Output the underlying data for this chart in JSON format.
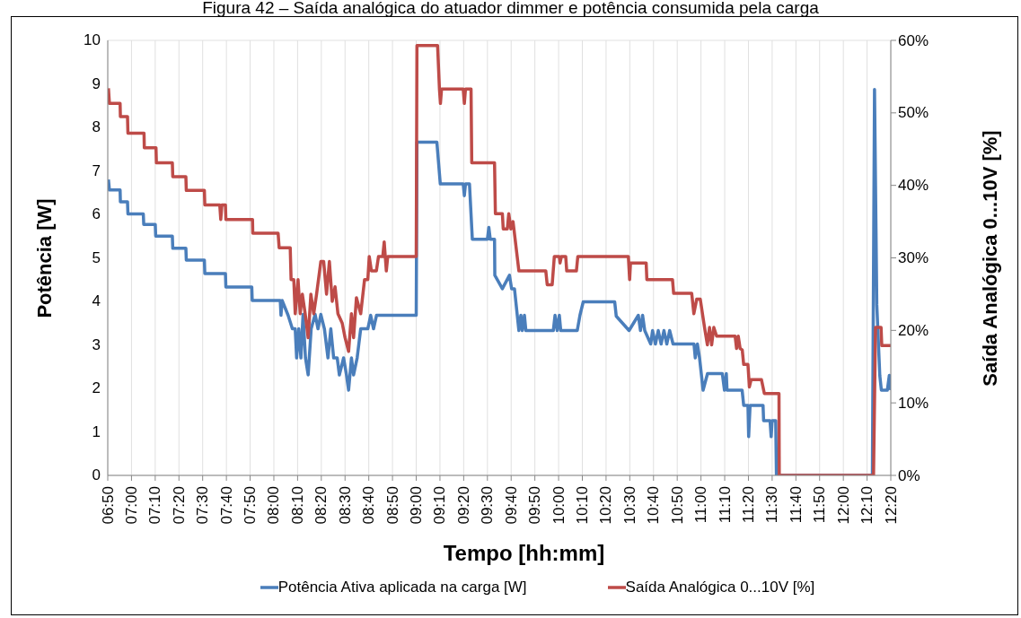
{
  "chart_data": {
    "type": "line",
    "title": "Figura 42 – Saída analógica do atuador dimmer e potência consumida pela carga",
    "xlabel": "Tempo [hh:mm]",
    "ylabel": "Potência [W]",
    "y2label": "Saída Analógica 0...10V [%]",
    "xlim": [
      6.8333,
      12.3333
    ],
    "xticks": [
      {
        "value": 6.8333,
        "label": "06:50"
      },
      {
        "value": 7,
        "label": "07:00"
      },
      {
        "value": 7.1667,
        "label": "07:10"
      },
      {
        "value": 7.3333,
        "label": "07:20"
      },
      {
        "value": 7.5,
        "label": "07:30"
      },
      {
        "value": 7.6667,
        "label": "07:40"
      },
      {
        "value": 7.8333,
        "label": "07:50"
      },
      {
        "value": 8,
        "label": "08:00"
      },
      {
        "value": 8.1667,
        "label": "08:10"
      },
      {
        "value": 8.3333,
        "label": "08:20"
      },
      {
        "value": 8.5,
        "label": "08:30"
      },
      {
        "value": 8.6667,
        "label": "08:40"
      },
      {
        "value": 8.8333,
        "label": "08:50"
      },
      {
        "value": 9,
        "label": "09:00"
      },
      {
        "value": 9.1667,
        "label": "09:10"
      },
      {
        "value": 9.3333,
        "label": "09:20"
      },
      {
        "value": 9.5,
        "label": "09:30"
      },
      {
        "value": 9.6667,
        "label": "09:40"
      },
      {
        "value": 9.8333,
        "label": "09:50"
      },
      {
        "value": 10,
        "label": "10:00"
      },
      {
        "value": 10.1667,
        "label": "10:10"
      },
      {
        "value": 10.3333,
        "label": "10:20"
      },
      {
        "value": 10.5,
        "label": "10:30"
      },
      {
        "value": 10.6667,
        "label": "10:40"
      },
      {
        "value": 10.8333,
        "label": "10:50"
      },
      {
        "value": 11,
        "label": "11:00"
      },
      {
        "value": 11.1667,
        "label": "11:10"
      },
      {
        "value": 11.3333,
        "label": "11:20"
      },
      {
        "value": 11.5,
        "label": "11:30"
      },
      {
        "value": 11.6667,
        "label": "11:40"
      },
      {
        "value": 11.8333,
        "label": "11:50"
      },
      {
        "value": 12,
        "label": "12:00"
      },
      {
        "value": 12.1667,
        "label": "12:10"
      },
      {
        "value": 12.3333,
        "label": "12:20"
      }
    ],
    "ylim": [
      0,
      10
    ],
    "yticks": [
      0,
      1,
      2,
      3,
      4,
      5,
      6,
      7,
      8,
      9,
      10
    ],
    "y2lim": [
      0,
      60
    ],
    "y2ticks": [
      {
        "value": 0,
        "label": "0%"
      },
      {
        "value": 10,
        "label": "10%"
      },
      {
        "value": 20,
        "label": "20%"
      },
      {
        "value": 30,
        "label": "30%"
      },
      {
        "value": 40,
        "label": "40%"
      },
      {
        "value": 50,
        "label": "50%"
      },
      {
        "value": 60,
        "label": "60%"
      }
    ],
    "grid": true,
    "legend": "bottom",
    "marker": "none",
    "line_style": "solid",
    "series": [
      {
        "name": "Potência Ativa aplicada na carga [W]",
        "color": "#4a7ebb",
        "x": [
          6.838,
          6.845,
          6.92,
          6.922,
          6.972,
          6.975,
          7.083,
          7.086,
          7.167,
          7.17,
          7.287,
          7.29,
          7.382,
          7.385,
          7.512,
          7.515,
          7.66,
          7.663,
          7.845,
          7.848,
          8.045,
          8.05,
          8.058,
          8.1,
          8.13,
          8.15,
          8.16,
          8.175,
          8.19,
          8.205,
          8.222,
          8.241,
          8.262,
          8.29,
          8.31,
          8.33,
          8.355,
          8.38,
          8.4,
          8.42,
          8.445,
          8.46,
          8.49,
          8.51,
          8.525,
          8.545,
          8.56,
          8.585,
          8.61,
          8.66,
          8.68,
          8.7,
          8.721,
          9.0,
          9.005,
          9.145,
          9.169,
          9.33,
          9.338,
          9.346,
          9.374,
          9.394,
          9.5,
          9.51,
          9.52,
          9.55,
          9.552,
          9.605,
          9.655,
          9.67,
          9.69,
          9.721,
          9.735,
          9.745,
          9.76,
          9.77,
          9.963,
          9.975,
          9.99,
          10.005,
          10.015,
          10.131,
          10.15,
          10.173,
          10.394,
          10.405,
          10.495,
          10.56,
          10.575,
          10.59,
          10.605,
          10.647,
          10.66,
          10.68,
          10.7,
          10.72,
          10.74,
          10.76,
          10.78,
          10.804,
          10.951,
          10.96,
          10.975,
          10.99,
          11.015,
          11.046,
          11.15,
          11.165,
          11.178,
          11.183,
          11.289,
          11.3,
          11.33,
          11.335,
          11.345,
          11.436,
          11.44,
          11.485,
          11.493,
          11.5,
          11.525,
          11.53,
          12.204,
          12.219,
          12.235,
          12.256,
          12.267,
          12.309,
          12.323,
          12.333
        ],
        "values": [
          6.8,
          6.56,
          6.56,
          6.29,
          6.29,
          6.01,
          6.01,
          5.77,
          5.77,
          5.5,
          5.5,
          5.22,
          5.22,
          4.95,
          4.95,
          4.64,
          4.64,
          4.33,
          4.33,
          4.02,
          4.02,
          3.68,
          4.02,
          3.68,
          3.37,
          3.37,
          2.7,
          3.37,
          2.7,
          3.7,
          2.7,
          2.31,
          3.37,
          3.7,
          3.37,
          3.7,
          3.37,
          2.7,
          3.37,
          2.7,
          2.7,
          2.31,
          2.7,
          2.31,
          1.96,
          2.7,
          2.31,
          2.7,
          3.37,
          3.37,
          3.68,
          3.37,
          3.68,
          3.68,
          7.66,
          7.66,
          6.7,
          6.7,
          6.43,
          6.7,
          6.7,
          5.43,
          5.43,
          5.7,
          5.43,
          5.43,
          4.6,
          4.29,
          4.6,
          4.29,
          4.29,
          3.33,
          3.68,
          3.33,
          3.68,
          3.33,
          3.33,
          3.68,
          3.33,
          3.68,
          3.33,
          3.33,
          3.68,
          3.99,
          3.99,
          3.66,
          3.33,
          3.68,
          3.33,
          3.68,
          3.33,
          3.02,
          3.33,
          3.02,
          3.33,
          3.02,
          3.33,
          3.02,
          3.33,
          3.02,
          3.02,
          2.7,
          3.02,
          2.7,
          1.96,
          2.34,
          2.34,
          1.96,
          2.34,
          1.96,
          1.96,
          1.61,
          1.61,
          0.89,
          1.61,
          1.61,
          1.26,
          1.26,
          0.89,
          1.26,
          1.26,
          0,
          0,
          8.87,
          3.92,
          2.3,
          1.96,
          1.96,
          2.3,
          1.96
        ]
      },
      {
        "name": "Saída Analógica 0...10V [%]",
        "color": "#be4b48",
        "axis": "y2",
        "x": [
          6.838,
          6.845,
          6.92,
          6.922,
          6.972,
          6.975,
          7.088,
          7.09,
          7.172,
          7.175,
          7.287,
          7.29,
          7.382,
          7.385,
          7.512,
          7.515,
          7.62,
          7.627,
          7.635,
          7.66,
          7.663,
          7.85,
          7.852,
          8.03,
          8.037,
          8.115,
          8.121,
          8.14,
          8.15,
          8.17,
          8.185,
          8.2,
          8.22,
          8.241,
          8.26,
          8.28,
          8.3,
          8.33,
          8.35,
          8.37,
          8.39,
          8.41,
          8.43,
          8.45,
          8.48,
          8.5,
          8.525,
          8.545,
          8.56,
          8.58,
          8.61,
          8.637,
          8.66,
          8.67,
          8.685,
          8.72,
          8.735,
          8.765,
          8.775,
          8.79,
          8.8,
          9.0,
          9.005,
          9.15,
          9.163,
          9.17,
          9.178,
          9.33,
          9.338,
          9.346,
          9.385,
          9.39,
          9.55,
          9.556,
          9.605,
          9.611,
          9.64,
          9.65,
          9.665,
          9.68,
          9.721,
          9.91,
          9.92,
          9.955,
          9.97,
          10.005,
          10.01,
          10.02,
          10.05,
          10.057,
          10.125,
          10.135,
          10.49,
          10.499,
          10.505,
          10.615,
          10.62,
          10.8,
          10.808,
          10.935,
          10.95,
          10.97,
          10.995,
          11.025,
          11.045,
          11.06,
          11.075,
          11.09,
          11.11,
          11.24,
          11.25,
          11.262,
          11.275,
          11.29,
          11.3,
          11.33,
          11.34,
          11.352,
          11.425,
          11.445,
          11.548,
          11.55,
          12.212,
          12.226,
          12.265,
          12.27,
          12.333
        ],
        "values": [
          53.4,
          51.3,
          51.3,
          49.5,
          49.5,
          47.2,
          47.2,
          45.2,
          45.2,
          43.1,
          43.1,
          41.2,
          41.2,
          39.3,
          39.3,
          37.3,
          37.3,
          35.3,
          37.3,
          37.3,
          35.3,
          35.3,
          33.4,
          33.4,
          31.4,
          31.4,
          27.0,
          27.0,
          22.3,
          27.0,
          22.3,
          25.0,
          22.3,
          19.0,
          25.0,
          22.3,
          25.0,
          29.5,
          29.5,
          25.0,
          29.5,
          24.0,
          26.0,
          22.3,
          21.0,
          19.0,
          17.1,
          22.3,
          19.0,
          24.5,
          22.3,
          27.0,
          27.0,
          30.2,
          28.2,
          28.2,
          30.2,
          30.2,
          32.2,
          28.2,
          30.2,
          30.2,
          59.3,
          59.3,
          53.3,
          51.3,
          53.3,
          53.3,
          51.3,
          53.3,
          53.3,
          43.1,
          43.1,
          36.1,
          36.1,
          34.0,
          34.0,
          36.1,
          34.0,
          35.0,
          28.2,
          28.2,
          26.3,
          26.3,
          30.2,
          30.2,
          29.3,
          30.2,
          30.2,
          28.2,
          28.2,
          30.2,
          30.2,
          27.0,
          29.3,
          29.3,
          27.0,
          27.0,
          25.1,
          25.1,
          22.3,
          24.3,
          24.3,
          20.4,
          18.0,
          20.4,
          18.0,
          20.4,
          19.2,
          19.2,
          17.5,
          19.2,
          17.5,
          17.3,
          15.3,
          15.3,
          12.2,
          13.2,
          13.2,
          11.3,
          11.3,
          0,
          0,
          20.4,
          20.4,
          17.9,
          17.9
        ]
      }
    ]
  }
}
